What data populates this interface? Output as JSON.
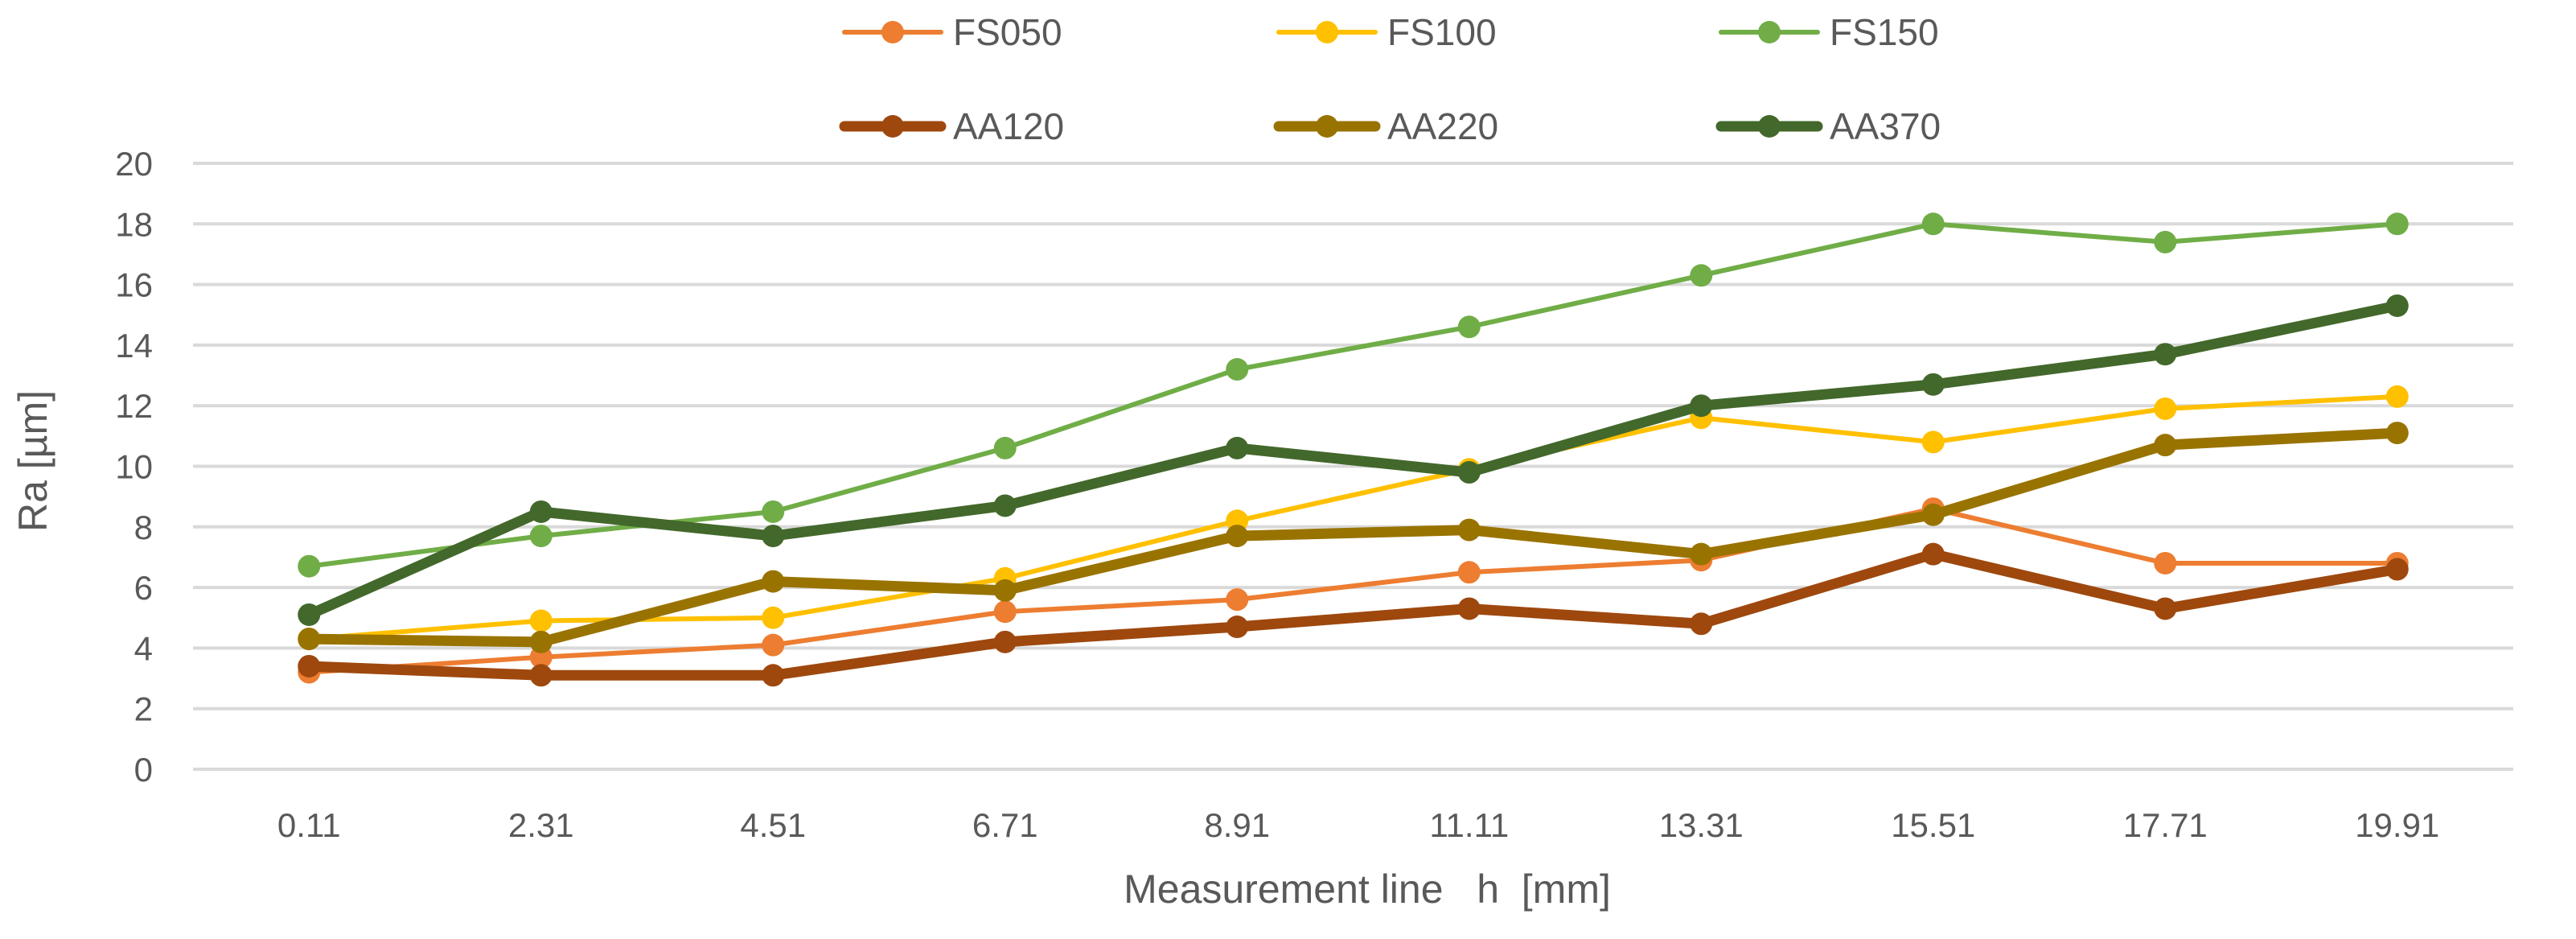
{
  "chart_data": {
    "type": "line",
    "title": "",
    "xlabel": "Measurement line   h  [mm]",
    "ylabel": "Ra [µm]",
    "ylim": [
      0,
      20
    ],
    "yticks": [
      "0",
      "2",
      "4",
      "6",
      "8",
      "10",
      "12",
      "14",
      "16",
      "18",
      "20"
    ],
    "categories": [
      "0.11",
      "2.31",
      "4.51",
      "6.71",
      "8.91",
      "11.11",
      "13.31",
      "15.51",
      "17.71",
      "19.91"
    ],
    "grid": true,
    "legend_position": "top",
    "series": [
      {
        "name": "FS050",
        "color": "#ED7D31",
        "width": "thin",
        "values": [
          3.2,
          3.7,
          4.1,
          5.2,
          5.6,
          6.5,
          6.9,
          8.6,
          6.8,
          6.8
        ]
      },
      {
        "name": "FS100",
        "color": "#FFC000",
        "width": "thin",
        "values": [
          4.3,
          4.9,
          5.0,
          6.3,
          8.2,
          9.9,
          11.6,
          10.8,
          11.9,
          12.3
        ]
      },
      {
        "name": "FS150",
        "color": "#70AD47",
        "width": "thin",
        "values": [
          6.7,
          7.7,
          8.5,
          10.6,
          13.2,
          14.6,
          16.3,
          18.0,
          17.4,
          18.0
        ]
      },
      {
        "name": "AA120",
        "color": "#9E480E",
        "width": "thick",
        "values": [
          3.4,
          3.1,
          3.1,
          4.2,
          4.7,
          5.3,
          4.8,
          7.1,
          5.3,
          6.6
        ]
      },
      {
        "name": "AA220",
        "color": "#997300",
        "width": "thick",
        "values": [
          4.3,
          4.2,
          6.2,
          5.9,
          7.7,
          7.9,
          7.1,
          8.4,
          10.7,
          11.1
        ]
      },
      {
        "name": "AA370",
        "color": "#43682B",
        "width": "thick",
        "values": [
          5.1,
          8.5,
          7.7,
          8.7,
          10.6,
          9.8,
          12.0,
          12.7,
          13.7,
          15.3
        ]
      }
    ]
  }
}
